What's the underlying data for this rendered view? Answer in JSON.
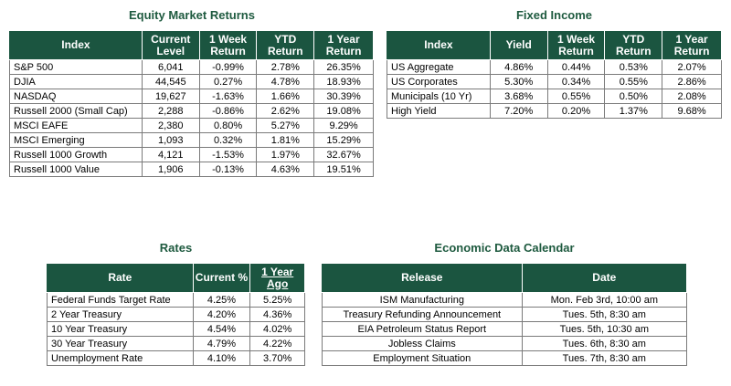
{
  "equity": {
    "title": "Equity Market Returns",
    "headers": [
      "Index",
      "Current Level",
      "1 Week Return",
      "YTD Return",
      "1 Year Return"
    ],
    "rows": [
      [
        "S&P 500",
        "6,041",
        "-0.99%",
        "2.78%",
        "26.35%"
      ],
      [
        "DJIA",
        "44,545",
        "0.27%",
        "4.78%",
        "18.93%"
      ],
      [
        "NASDAQ",
        "19,627",
        "-1.63%",
        "1.66%",
        "30.39%"
      ],
      [
        "Russell 2000 (Small Cap)",
        "2,288",
        "-0.86%",
        "2.62%",
        "19.08%"
      ],
      [
        "MSCI EAFE",
        "2,380",
        "0.80%",
        "5.27%",
        "9.29%"
      ],
      [
        "MSCI Emerging",
        "1,093",
        "0.32%",
        "1.81%",
        "15.29%"
      ],
      [
        "Russell 1000 Growth",
        "4,121",
        "-1.53%",
        "1.97%",
        "32.67%"
      ],
      [
        "Russell 1000 Value",
        "1,906",
        "-0.13%",
        "4.63%",
        "19.51%"
      ]
    ]
  },
  "fixed": {
    "title": "Fixed Income",
    "headers": [
      "Index",
      "Yield",
      "1 Week Return",
      "YTD Return",
      "1 Year Return"
    ],
    "rows": [
      [
        "US Aggregate",
        "4.86%",
        "0.44%",
        "0.53%",
        "2.07%"
      ],
      [
        "US Corporates",
        "5.30%",
        "0.34%",
        "0.55%",
        "2.86%"
      ],
      [
        "Municipals (10 Yr)",
        "3.68%",
        "0.55%",
        "0.50%",
        "2.08%"
      ],
      [
        "High Yield",
        "7.20%",
        "0.20%",
        "1.37%",
        "9.68%"
      ]
    ]
  },
  "rates": {
    "title": "Rates",
    "headers": [
      "Rate",
      "Current %",
      "1 Year Ago"
    ],
    "rows": [
      [
        "Federal Funds Target Rate",
        "4.25%",
        "5.25%"
      ],
      [
        "2 Year Treasury",
        "4.20%",
        "4.36%"
      ],
      [
        "10 Year Treasury",
        "4.54%",
        "4.02%"
      ],
      [
        "30 Year Treasury",
        "4.79%",
        "4.22%"
      ],
      [
        "Unemployment Rate",
        "4.10%",
        "3.70%"
      ]
    ]
  },
  "calendar": {
    "title": "Economic Data Calendar",
    "headers": [
      "Release",
      "Date"
    ],
    "rows": [
      [
        "ISM Manufacturing",
        "Mon. Feb 3rd, 10:00 am"
      ],
      [
        "Treasury Refunding Announcement",
        "Tues. 5th, 8:30 am"
      ],
      [
        "EIA Petroleum Status Report",
        "Tues. 5th, 10:30 am"
      ],
      [
        "Jobless Claims",
        "Tues. 6th, 8:30 am"
      ],
      [
        "Employment Situation",
        "Tues. 7th, 8:30 am"
      ]
    ]
  }
}
